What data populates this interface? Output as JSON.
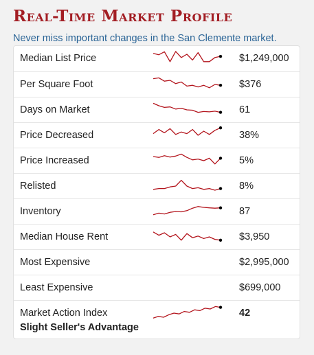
{
  "header": {
    "title": "Real-Time Market Profile",
    "subtitle": "Never miss important changes in the San Clemente market."
  },
  "colors": {
    "title": "#a31e24",
    "subtitle": "#2a6496",
    "sparkline": "#b3141c",
    "endpoint": "#000000"
  },
  "rows": [
    {
      "label": "Median List Price",
      "value": "$1,249,000",
      "spark": [
        0.8,
        0.72,
        0.9,
        0.3,
        0.92,
        0.55,
        0.75,
        0.4,
        0.85,
        0.3,
        0.3,
        0.55,
        0.62
      ]
    },
    {
      "label": "Per Square Foot",
      "value": "$376",
      "spark": [
        0.85,
        0.9,
        0.7,
        0.75,
        0.55,
        0.65,
        0.4,
        0.45,
        0.35,
        0.45,
        0.3,
        0.5,
        0.45
      ]
    },
    {
      "label": "Days on Market",
      "value": "61",
      "spark": [
        0.9,
        0.75,
        0.65,
        0.68,
        0.55,
        0.6,
        0.5,
        0.48,
        0.35,
        0.4,
        0.38,
        0.42,
        0.35
      ]
    },
    {
      "label": "Price Decreased",
      "value": "38%",
      "spark": [
        0.6,
        0.85,
        0.65,
        0.9,
        0.55,
        0.7,
        0.6,
        0.85,
        0.5,
        0.75,
        0.55,
        0.8,
        0.95
      ]
    },
    {
      "label": "Price Increased",
      "value": "5%",
      "spark": [
        0.75,
        0.7,
        0.8,
        0.72,
        0.78,
        0.9,
        0.7,
        0.55,
        0.6,
        0.5,
        0.65,
        0.3,
        0.65
      ]
    },
    {
      "label": "Relisted",
      "value": "8%",
      "spark": [
        0.3,
        0.35,
        0.35,
        0.45,
        0.5,
        0.85,
        0.5,
        0.35,
        0.4,
        0.3,
        0.35,
        0.25,
        0.35
      ]
    },
    {
      "label": "Inventory",
      "value": "87",
      "spark": [
        0.3,
        0.4,
        0.35,
        0.45,
        0.5,
        0.48,
        0.55,
        0.7,
        0.8,
        0.75,
        0.72,
        0.7,
        0.72
      ]
    },
    {
      "label": "Median House Rent",
      "value": "$3,950",
      "spark": [
        0.8,
        0.6,
        0.75,
        0.5,
        0.65,
        0.3,
        0.7,
        0.45,
        0.55,
        0.4,
        0.5,
        0.35,
        0.3
      ]
    },
    {
      "label": "Most Expensive",
      "value": "$2,995,000"
    },
    {
      "label": "Least Expensive",
      "value": "$699,000"
    },
    {
      "label": "Market Action Index",
      "value": "42",
      "sublabel": "Slight Seller's Advantage",
      "spark": [
        0.2,
        0.3,
        0.25,
        0.4,
        0.5,
        0.45,
        0.6,
        0.55,
        0.7,
        0.65,
        0.8,
        0.75,
        0.9,
        0.85
      ]
    }
  ]
}
